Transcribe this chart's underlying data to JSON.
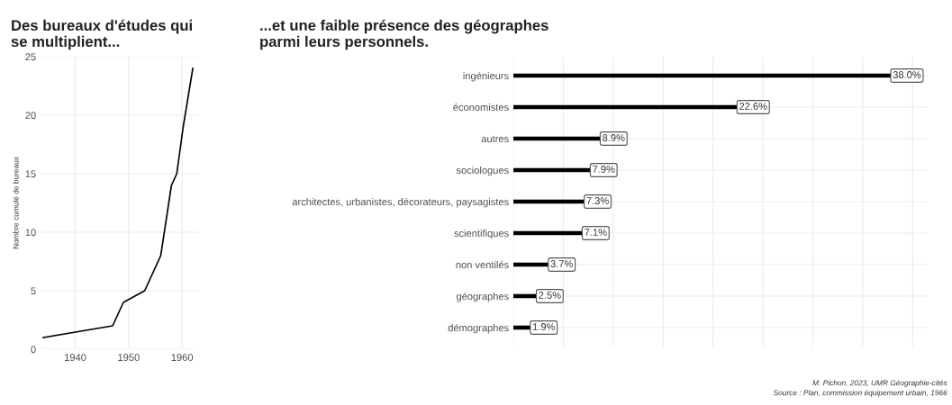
{
  "chart_data": [
    {
      "type": "line",
      "title": "Des bureaux d'études qui\nse multiplient...",
      "ylabel": "Nombre cumulé de bureaux",
      "x": [
        1934,
        1947,
        1949,
        1953,
        1956,
        1958,
        1959,
        1960.2,
        1962
      ],
      "series": [
        {
          "color": "#000000",
          "values": [
            1,
            2,
            4,
            5,
            8,
            14,
            15,
            19,
            24
          ]
        }
      ],
      "xlim": [
        1933.5,
        1963
      ],
      "xticks": [
        1940,
        1950,
        1960
      ],
      "ylim": [
        0,
        25
      ],
      "yticks": [
        0,
        5,
        10,
        15,
        20,
        25
      ],
      "grid": true,
      "marker": "none",
      "line_style": "solid"
    },
    {
      "type": "bar",
      "orientation": "horizontal",
      "title": "...et une faible présence des géographes\nparmi leurs personnels.",
      "categories": [
        "ingénieurs",
        "économistes",
        "autres",
        "sociologues",
        "architectes, urbanistes, décorateurs, paysagistes",
        "scientifiques",
        "non ventilés",
        "géographes",
        "démographes"
      ],
      "series": [
        {
          "color": "#000000",
          "values": [
            38.0,
            22.6,
            8.9,
            7.9,
            7.3,
            7.1,
            3.7,
            2.5,
            1.9
          ],
          "value_labels": [
            "38.0%",
            "22.6%",
            "8.9%",
            "7.9%",
            "7.3%",
            "7.1%",
            "3.7%",
            "2.5%",
            "1.9%"
          ]
        }
      ],
      "xlim": [
        0,
        41.5
      ],
      "tick_labels": "y",
      "grid": true,
      "annotations": [
        "M. Pichon, 2023, UMR Géographie-cités",
        "Source : Plan, commission équipement urbain, 1966"
      ]
    }
  ]
}
